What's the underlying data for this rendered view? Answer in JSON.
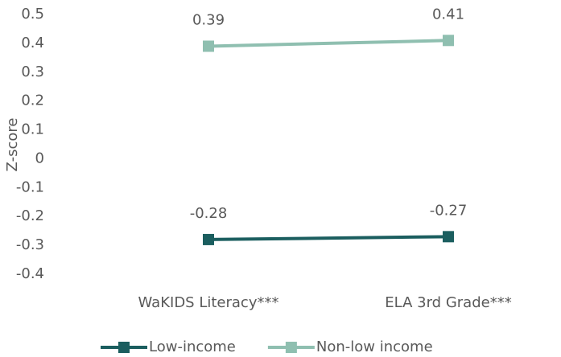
{
  "chart_data": {
    "type": "line",
    "y_label": "Z-score",
    "categories": [
      "WaKIDS Literacy***",
      "ELA 3rd Grade***"
    ],
    "series": [
      {
        "name": "Low-income",
        "color": "#1b5e5f",
        "values": [
          -0.28,
          -0.27
        ]
      },
      {
        "name": "Non-low income",
        "color": "#8fbfb0",
        "values": [
          0.39,
          0.41
        ]
      }
    ],
    "ylim": [
      -0.4,
      0.5
    ],
    "yticks": [
      -0.4,
      -0.3,
      -0.2,
      -0.1,
      0,
      0.1,
      0.2,
      0.3,
      0.4,
      0.5
    ],
    "legend": "bottom",
    "data_labels": true
  }
}
